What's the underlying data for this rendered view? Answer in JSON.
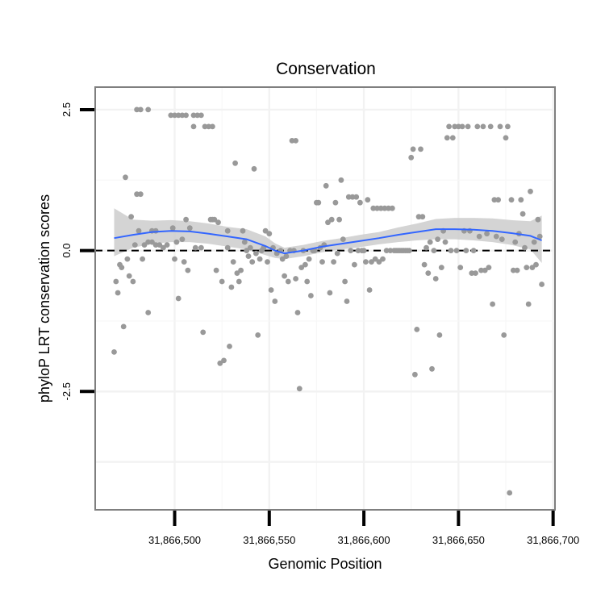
{
  "chart_data": {
    "type": "scatter",
    "title": "Conservation",
    "xlabel": "Genomic Position",
    "ylabel": "phyloP LRT conservation scores",
    "xlim": [
      31866458,
      31866701
    ],
    "ylim": [
      -4.6,
      2.9
    ],
    "x_ticks": [
      {
        "value": 31866500,
        "label": "31,866,500"
      },
      {
        "value": 31866550,
        "label": "31,866,550"
      },
      {
        "value": 31866600,
        "label": "31,866,600"
      },
      {
        "value": 31866650,
        "label": "31,866,650"
      },
      {
        "value": 31866700,
        "label": "31,866,700"
      }
    ],
    "y_ticks": [
      {
        "value": 2.5,
        "label": "2.5"
      },
      {
        "value": 0.0,
        "label": "0.0"
      },
      {
        "value": -2.5,
        "label": "-2.5"
      }
    ],
    "reference_line": {
      "y": 0,
      "style": "dashed",
      "color": "#000000"
    },
    "point_color": "#999999",
    "smooth_color": "#3366ff",
    "ribbon_color": "#cccccc",
    "points": [
      [
        31866468,
        -1.8
      ],
      [
        31866469,
        -0.55
      ],
      [
        31866470,
        -0.75
      ],
      [
        31866471,
        -0.25
      ],
      [
        31866472,
        -0.3
      ],
      [
        31866473,
        -1.35
      ],
      [
        31866474,
        1.3
      ],
      [
        31866475,
        -0.15
      ],
      [
        31866476,
        -0.45
      ],
      [
        31866477,
        0.6
      ],
      [
        31866478,
        -0.55
      ],
      [
        31866479,
        0.1
      ],
      [
        31866480,
        2.5
      ],
      [
        31866480,
        1.0
      ],
      [
        31866481,
        0.35
      ],
      [
        31866482,
        2.5
      ],
      [
        31866482,
        1.0
      ],
      [
        31866483,
        -0.15
      ],
      [
        31866484,
        0.1
      ],
      [
        31866486,
        2.5
      ],
      [
        31866486,
        0.15
      ],
      [
        31866486,
        -1.1
      ],
      [
        31866488,
        0.35
      ],
      [
        31866488,
        0.15
      ],
      [
        31866490,
        0.35
      ],
      [
        31866490,
        0.1
      ],
      [
        31866492,
        0.1
      ],
      [
        31866494,
        0.05
      ],
      [
        31866496,
        0.1
      ],
      [
        31866498,
        2.4
      ],
      [
        31866499,
        0.4
      ],
      [
        31866500,
        -0.15
      ],
      [
        31866500,
        2.4
      ],
      [
        31866501,
        0.15
      ],
      [
        31866502,
        -0.85
      ],
      [
        31866502,
        2.4
      ],
      [
        31866504,
        2.4
      ],
      [
        31866504,
        0.2
      ],
      [
        31866505,
        -0.2
      ],
      [
        31866506,
        2.4
      ],
      [
        31866506,
        0.55
      ],
      [
        31866507,
        -0.35
      ],
      [
        31866508,
        0.4
      ],
      [
        31866510,
        2.2
      ],
      [
        31866510,
        2.4
      ],
      [
        31866511,
        0.05
      ],
      [
        31866512,
        2.4
      ],
      [
        31866514,
        2.4
      ],
      [
        31866514,
        0.05
      ],
      [
        31866515,
        -1.45
      ],
      [
        31866516,
        2.2
      ],
      [
        31866518,
        2.2
      ],
      [
        31866519,
        0.55
      ],
      [
        31866520,
        2.2
      ],
      [
        31866520,
        0.55
      ],
      [
        31866521,
        0.55
      ],
      [
        31866522,
        -0.35
      ],
      [
        31866523,
        0.5
      ],
      [
        31866524,
        -2.0
      ],
      [
        31866525,
        -0.55
      ],
      [
        31866526,
        -1.95
      ],
      [
        31866528,
        0.05
      ],
      [
        31866528,
        0.35
      ],
      [
        31866529,
        -1.7
      ],
      [
        31866530,
        -0.65
      ],
      [
        31866531,
        -0.2
      ],
      [
        31866532,
        1.55
      ],
      [
        31866533,
        -0.4
      ],
      [
        31866534,
        -0.55
      ],
      [
        31866535,
        -0.35
      ],
      [
        31866536,
        0.35
      ],
      [
        31866537,
        0.15
      ],
      [
        31866538,
        0.0
      ],
      [
        31866539,
        -0.1
      ],
      [
        31866540,
        0.05
      ],
      [
        31866541,
        -0.2
      ],
      [
        31866542,
        1.45
      ],
      [
        31866543,
        -0.05
      ],
      [
        31866544,
        -1.5
      ],
      [
        31866545,
        -0.15
      ],
      [
        31866546,
        0.0
      ],
      [
        31866547,
        0.05
      ],
      [
        31866548,
        0.35
      ],
      [
        31866549,
        -0.2
      ],
      [
        31866550,
        0.3
      ],
      [
        31866551,
        -0.7
      ],
      [
        31866552,
        0.05
      ],
      [
        31866553,
        -0.9
      ],
      [
        31866554,
        -0.05
      ],
      [
        31866556,
        0.0
      ],
      [
        31866557,
        -0.15
      ],
      [
        31866558,
        -0.45
      ],
      [
        31866559,
        -0.1
      ],
      [
        31866560,
        -0.55
      ],
      [
        31866561,
        0.0
      ],
      [
        31866562,
        1.95
      ],
      [
        31866563,
        0.0
      ],
      [
        31866564,
        1.95
      ],
      [
        31866564,
        -0.5
      ],
      [
        31866565,
        -1.1
      ],
      [
        31866566,
        -2.45
      ],
      [
        31866567,
        -0.3
      ],
      [
        31866568,
        0.0
      ],
      [
        31866569,
        -0.25
      ],
      [
        31866570,
        -0.55
      ],
      [
        31866571,
        -0.15
      ],
      [
        31866572,
        -0.8
      ],
      [
        31866573,
        0.0
      ],
      [
        31866574,
        0.0
      ],
      [
        31866575,
        0.85
      ],
      [
        31866576,
        0.85
      ],
      [
        31866577,
        0.05
      ],
      [
        31866578,
        -0.2
      ],
      [
        31866579,
        0.1
      ],
      [
        31866580,
        1.15
      ],
      [
        31866581,
        0.5
      ],
      [
        31866582,
        -0.75
      ],
      [
        31866583,
        0.55
      ],
      [
        31866584,
        -0.2
      ],
      [
        31866585,
        0.85
      ],
      [
        31866586,
        -0.05
      ],
      [
        31866587,
        0.55
      ],
      [
        31866588,
        1.25
      ],
      [
        31866589,
        0.2
      ],
      [
        31866590,
        -0.55
      ],
      [
        31866591,
        -0.9
      ],
      [
        31866592,
        0.95
      ],
      [
        31866593,
        0.0
      ],
      [
        31866594,
        0.95
      ],
      [
        31866595,
        -0.25
      ],
      [
        31866596,
        0.95
      ],
      [
        31866597,
        0.0
      ],
      [
        31866598,
        0.85
      ],
      [
        31866599,
        0.0
      ],
      [
        31866600,
        0.0
      ],
      [
        31866601,
        -0.2
      ],
      [
        31866602,
        0.9
      ],
      [
        31866603,
        -0.7
      ],
      [
        31866604,
        -0.2
      ],
      [
        31866605,
        0.75
      ],
      [
        31866606,
        -0.15
      ],
      [
        31866607,
        0.75
      ],
      [
        31866608,
        -0.2
      ],
      [
        31866609,
        0.75
      ],
      [
        31866610,
        -0.15
      ],
      [
        31866611,
        0.75
      ],
      [
        31866612,
        0.0
      ],
      [
        31866613,
        0.75
      ],
      [
        31866614,
        0.0
      ],
      [
        31866615,
        0.75
      ],
      [
        31866616,
        0.0
      ],
      [
        31866617,
        0.0
      ],
      [
        31866618,
        0.0
      ],
      [
        31866619,
        0.0
      ],
      [
        31866620,
        0.0
      ],
      [
        31866621,
        0.0
      ],
      [
        31866622,
        0.0
      ],
      [
        31866623,
        0.0
      ],
      [
        31866624,
        0.0
      ],
      [
        31866625,
        1.65
      ],
      [
        31866626,
        1.8
      ],
      [
        31866627,
        -2.2
      ],
      [
        31866628,
        -1.4
      ],
      [
        31866629,
        0.6
      ],
      [
        31866630,
        1.8
      ],
      [
        31866631,
        0.6
      ],
      [
        31866632,
        -0.25
      ],
      [
        31866633,
        0.05
      ],
      [
        31866634,
        -0.4
      ],
      [
        31866635,
        0.15
      ],
      [
        31866636,
        -2.1
      ],
      [
        31866637,
        0.0
      ],
      [
        31866638,
        -0.5
      ],
      [
        31866639,
        0.2
      ],
      [
        31866640,
        -1.5
      ],
      [
        31866641,
        -0.3
      ],
      [
        31866642,
        0.35
      ],
      [
        31866643,
        0.15
      ],
      [
        31866644,
        2.0
      ],
      [
        31866645,
        2.2
      ],
      [
        31866646,
        0.0
      ],
      [
        31866647,
        2.0
      ],
      [
        31866648,
        2.2
      ],
      [
        31866649,
        0.0
      ],
      [
        31866650,
        2.2
      ],
      [
        31866651,
        -0.3
      ],
      [
        31866652,
        2.2
      ],
      [
        31866653,
        0.35
      ],
      [
        31866654,
        0.0
      ],
      [
        31866655,
        2.2
      ],
      [
        31866656,
        0.35
      ],
      [
        31866657,
        -0.4
      ],
      [
        31866658,
        0.0
      ],
      [
        31866659,
        -0.4
      ],
      [
        31866660,
        2.2
      ],
      [
        31866661,
        0.25
      ],
      [
        31866662,
        -0.35
      ],
      [
        31866663,
        2.2
      ],
      [
        31866664,
        -0.35
      ],
      [
        31866665,
        0.3
      ],
      [
        31866666,
        -0.3
      ],
      [
        31866667,
        2.2
      ],
      [
        31866668,
        -0.95
      ],
      [
        31866669,
        0.9
      ],
      [
        31866670,
        0.25
      ],
      [
        31866671,
        0.9
      ],
      [
        31866672,
        2.2
      ],
      [
        31866673,
        0.2
      ],
      [
        31866674,
        -1.5
      ],
      [
        31866675,
        2.0
      ],
      [
        31866676,
        2.2
      ],
      [
        31866677,
        -4.3
      ],
      [
        31866678,
        0.9
      ],
      [
        31866679,
        -0.35
      ],
      [
        31866680,
        0.15
      ],
      [
        31866681,
        -0.35
      ],
      [
        31866682,
        0.3
      ],
      [
        31866683,
        0.9
      ],
      [
        31866684,
        0.65
      ],
      [
        31866685,
        0.05
      ],
      [
        31866686,
        -0.3
      ],
      [
        31866687,
        -0.95
      ],
      [
        31866688,
        1.05
      ],
      [
        31866689,
        -0.3
      ],
      [
        31866690,
        0.15
      ],
      [
        31866691,
        -0.25
      ],
      [
        31866692,
        0.55
      ],
      [
        31866693,
        0.25
      ],
      [
        31866694,
        -0.6
      ]
    ],
    "smooth": {
      "x": [
        31866468,
        31866478,
        31866488,
        31866498,
        31866508,
        31866518,
        31866528,
        31866538,
        31866548,
        31866553,
        31866558,
        31866568,
        31866578,
        31866588,
        31866598,
        31866608,
        31866618,
        31866628,
        31866638,
        31866648,
        31866658,
        31866668,
        31866678,
        31866688,
        31866694
      ],
      "y": [
        0.22,
        0.28,
        0.33,
        0.35,
        0.34,
        0.3,
        0.25,
        0.2,
        0.08,
        0.0,
        -0.05,
        0.0,
        0.07,
        0.12,
        0.17,
        0.22,
        0.28,
        0.33,
        0.38,
        0.38,
        0.37,
        0.35,
        0.31,
        0.26,
        0.18
      ],
      "lower": [
        -0.1,
        0.05,
        0.12,
        0.15,
        0.15,
        0.12,
        0.07,
        0.02,
        -0.08,
        -0.13,
        -0.15,
        -0.1,
        -0.03,
        0.02,
        0.06,
        0.11,
        0.15,
        0.18,
        0.2,
        0.2,
        0.18,
        0.15,
        0.1,
        0.02,
        -0.22
      ],
      "upper": [
        0.75,
        0.55,
        0.53,
        0.54,
        0.52,
        0.48,
        0.42,
        0.38,
        0.25,
        0.13,
        0.05,
        0.1,
        0.17,
        0.22,
        0.28,
        0.33,
        0.41,
        0.48,
        0.56,
        0.58,
        0.58,
        0.57,
        0.54,
        0.52,
        0.62
      ]
    }
  }
}
